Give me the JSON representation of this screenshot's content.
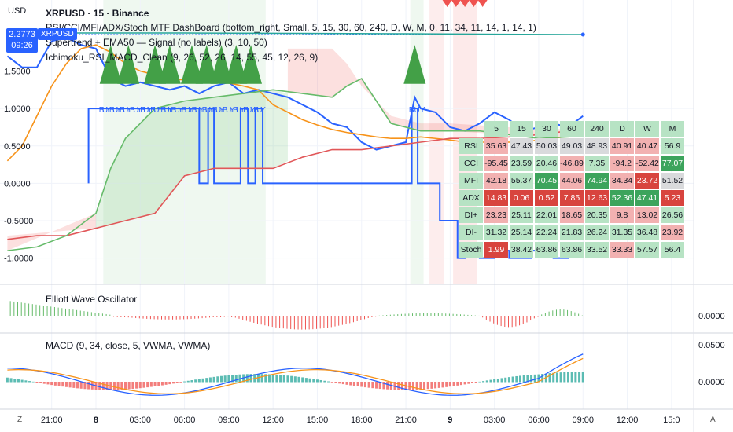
{
  "header": {
    "currency": "USD",
    "symbol_line": "XRPUSD · 15 · Binance",
    "price_tag": "2.2773",
    "price_tag_time": "09:26",
    "pair_tag": "XRPUSD"
  },
  "indicators": [
    "RSI/CCI/MFI/ADX/Stoch MTF DashBoard (bottom_right, Small, 5, 15, 30, 60, 240, D, W, M, 0, 11, 34, 11, 14, 1, 14, 1)",
    "Supertrend + EMA50 — Signal (no labels) (3, 10, 50)",
    "Ichimoku_RSI_MACD_Clean (9, 26, 52, 26, 14, 55, 45, 12, 26, 9)"
  ],
  "dashboard": {
    "headers": [
      "5",
      "15",
      "30",
      "60",
      "240",
      "D",
      "W",
      "M"
    ],
    "rows": [
      {
        "label": "RSI",
        "values": [
          "35.63",
          "47.43",
          "50.03",
          "49.03",
          "48.93",
          "40.91",
          "40.47",
          "56.9"
        ],
        "styles": [
          "lr",
          "gy",
          "gy",
          "gy",
          "gy",
          "lr",
          "lr",
          "lg"
        ]
      },
      {
        "label": "CCI",
        "values": [
          "-95.45",
          "23.59",
          "20.46",
          "-46.89",
          "7.35",
          "-94.2",
          "-52.42",
          "77.07"
        ],
        "styles": [
          "lr",
          "lg",
          "lg",
          "lr",
          "lg",
          "lr",
          "lr",
          "dg"
        ]
      },
      {
        "label": "MFI",
        "values": [
          "42.18",
          "55.37",
          "70.45",
          "44.06",
          "74.94",
          "34.34",
          "23.72",
          "51.52"
        ],
        "styles": [
          "lr",
          "lg",
          "dg",
          "lr",
          "dg",
          "lr",
          "dr",
          "gy"
        ]
      },
      {
        "label": "ADX",
        "values": [
          "14.83",
          "0.06",
          "0.52",
          "7.85",
          "12.63",
          "52.36",
          "47.41",
          "5.23"
        ],
        "styles": [
          "dr",
          "dr",
          "dr",
          "dr",
          "dr",
          "dg",
          "dg",
          "dr"
        ]
      },
      {
        "label": "DI+",
        "values": [
          "23.23",
          "25.11",
          "22.01",
          "18.65",
          "20.35",
          "9.8",
          "13.02",
          "26.56"
        ],
        "styles": [
          "lr",
          "lg",
          "lg",
          "lr",
          "lg",
          "lr",
          "lr",
          "lg"
        ]
      },
      {
        "label": "DI-",
        "values": [
          "31.32",
          "25.14",
          "22.24",
          "21.83",
          "26.24",
          "31.35",
          "36.48",
          "23.92"
        ],
        "styles": [
          "lg",
          "lg",
          "lg",
          "lg",
          "lg",
          "lg",
          "lg",
          "lr"
        ]
      },
      {
        "label": "Stoch",
        "values": [
          "1.99",
          "38.42",
          "63.86",
          "63.86",
          "33.52",
          "33.33",
          "57.57",
          "56.4"
        ],
        "styles": [
          "dr",
          "lg",
          "lg",
          "lg",
          "lg",
          "lr",
          "lg",
          "lg"
        ]
      }
    ]
  },
  "sub_panels": {
    "ewo_title": "Elliott Wave Oscillator",
    "ewo_value": "0.0000",
    "macd_title": "MACD (9, 34, close, 5, VWMA, VWMA)",
    "macd_top": "0.0500",
    "macd_zero": "0.0000"
  },
  "signals": {
    "buy_left": "BUYBUYBUYBUYBUYBUYBUYBUYBUYBUYBUYBUYBUYBUYBUYBUY",
    "buy_right": "BUY"
  },
  "bottom_bar": {
    "left_btn": "Z",
    "right_btn": "A"
  },
  "chart_data": {
    "type": "line",
    "title": "XRPUSD · 15 · Binance",
    "ylabel": "USD",
    "y_ticks": [
      1.5,
      1.0,
      0.5,
      0.0,
      -0.5,
      -1.0
    ],
    "y_tick_labels": [
      "1.5000",
      "1.0000",
      "0.5000",
      "0.0000",
      "-0.5000",
      "-1.0000"
    ],
    "ylim": [
      -1.35,
      2.45
    ],
    "x_tick_labels": [
      "21:00",
      "8",
      "03:00",
      "06:00",
      "09:00",
      "12:00",
      "15:00",
      "18:00",
      "21:00",
      "9",
      "03:00",
      "06:00",
      "09:00",
      "12:00",
      "15:0"
    ],
    "x_tick_hours": [
      21,
      24,
      27,
      30,
      33,
      36,
      39,
      42,
      45,
      48,
      51,
      54,
      57,
      60,
      63
    ],
    "x_range_hours": [
      17.5,
      64.5
    ],
    "series": [
      {
        "name": "RSI-normalized (blue)",
        "color": "#2962ff",
        "x": [
          18,
          19,
          20,
          21,
          22,
          23,
          24,
          25,
          26,
          27,
          28,
          29,
          30,
          31,
          32,
          33,
          34,
          35,
          36,
          37,
          38,
          39,
          40,
          41,
          42,
          43,
          44,
          45,
          45.6,
          46,
          47,
          48,
          49,
          50,
          51,
          52,
          53,
          54,
          55,
          56,
          57
        ],
        "y": [
          1.7,
          1.55,
          1.55,
          1.9,
          1.95,
          1.85,
          1.8,
          1.4,
          1.3,
          1.35,
          1.3,
          1.25,
          1.3,
          1.2,
          1.3,
          1.35,
          1.2,
          1.25,
          1.2,
          1.15,
          1.05,
          0.95,
          0.8,
          0.75,
          0.55,
          0.45,
          0.5,
          0.55,
          1.15,
          1.0,
          0.95,
          0.75,
          0.7,
          0.8,
          0.95,
          0.85,
          0.7,
          0.75,
          0.8,
          0.75,
          0.9
        ]
      },
      {
        "name": "Supertrend signal (blue)",
        "color": "#2962ff",
        "x": [
          23.5,
          23.5,
          31,
          31,
          31.6,
          31.6,
          32,
          32,
          33.8,
          33.8,
          34.3,
          34.3,
          34.8,
          34.8,
          35.3,
          35.3,
          45.4,
          45.4,
          45.8,
          45.8,
          47.3,
          47.3,
          48.5,
          48.5,
          49,
          49,
          50,
          50,
          51,
          51,
          52,
          52,
          53.5,
          53.5,
          55,
          55,
          56,
          56,
          57
        ],
        "y": [
          0.0,
          1.0,
          1.0,
          0.0,
          0.0,
          1.0,
          1.0,
          0.0,
          0.0,
          1.0,
          1.0,
          0.0,
          0.0,
          1.0,
          1.0,
          0.0,
          0.0,
          1.0,
          1.0,
          0.0,
          0.0,
          -0.5,
          -0.5,
          -1.0,
          -1.0,
          -0.9,
          -0.9,
          -1.0,
          -1.0,
          -0.9,
          -0.9,
          -1.0,
          -1.0,
          -0.9,
          -0.9,
          -1.0,
          -1.0,
          -0.9,
          -0.9
        ]
      },
      {
        "name": "EMA50 (orange)",
        "color": "#f7931a",
        "x": [
          18,
          19,
          20,
          21,
          22,
          23,
          24,
          25,
          26,
          27,
          28,
          29,
          30,
          31,
          32,
          33,
          34,
          35,
          36,
          37,
          38,
          39,
          40,
          41,
          42,
          43,
          44,
          45,
          46,
          47,
          48,
          49,
          50,
          51,
          52,
          53,
          54,
          55,
          56,
          57
        ],
        "y": [
          0.3,
          0.5,
          0.9,
          1.3,
          1.6,
          1.8,
          1.85,
          1.75,
          1.6,
          1.5,
          1.45,
          1.4,
          1.38,
          1.36,
          1.35,
          1.34,
          1.3,
          1.25,
          1.05,
          0.95,
          0.85,
          0.78,
          0.72,
          0.68,
          0.65,
          0.62,
          0.6,
          0.6,
          0.62,
          0.6,
          0.58,
          0.55,
          0.55,
          0.55,
          0.55,
          0.55,
          0.58,
          0.6,
          0.63,
          0.65
        ]
      },
      {
        "name": "Kijun (red)",
        "color": "#e15759",
        "x": [
          18,
          20,
          22,
          24,
          26,
          28,
          30,
          32,
          34,
          36,
          38,
          40,
          42,
          44,
          46,
          48,
          50,
          52,
          54,
          56,
          57
        ],
        "y": [
          -0.75,
          -0.7,
          -0.7,
          -0.6,
          -0.5,
          -0.4,
          0.1,
          0.2,
          0.2,
          0.2,
          0.35,
          0.45,
          0.45,
          0.5,
          0.55,
          0.6,
          0.6,
          0.62,
          0.65,
          0.7,
          0.7
        ]
      },
      {
        "name": "Senkou (green)",
        "color": "#66bb6a",
        "x": [
          18,
          20,
          22,
          24,
          25,
          26,
          27,
          28,
          30,
          32,
          34,
          36,
          38,
          40,
          41,
          42,
          44,
          46,
          48,
          50,
          52,
          54,
          56,
          57
        ],
        "y": [
          -0.9,
          -0.85,
          -0.7,
          -0.4,
          0.2,
          0.6,
          0.8,
          1.0,
          1.1,
          1.15,
          1.2,
          1.25,
          1.2,
          1.15,
          1.3,
          1.4,
          0.8,
          0.7,
          0.7,
          0.7,
          0.65,
          0.6,
          0.62,
          0.65
        ]
      }
    ]
  }
}
